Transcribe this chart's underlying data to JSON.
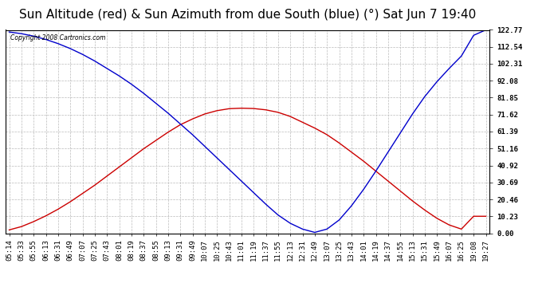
{
  "title": "Sun Altitude (red) & Sun Azimuth from due South (blue) (°) Sat Jun 7 19:40",
  "copyright": "Copyright 2008 Cartronics.com",
  "ymin": 0.0,
  "ymax": 122.77,
  "yticks": [
    0.0,
    10.23,
    20.46,
    30.69,
    40.92,
    51.16,
    61.39,
    71.62,
    81.85,
    92.08,
    102.31,
    112.54,
    122.77
  ],
  "x_labels": [
    "05:14",
    "05:33",
    "05:55",
    "06:13",
    "06:31",
    "06:49",
    "07:07",
    "07:25",
    "07:43",
    "08:01",
    "08:19",
    "08:37",
    "08:55",
    "09:13",
    "09:31",
    "09:49",
    "10:07",
    "10:25",
    "10:43",
    "11:01",
    "11:19",
    "11:37",
    "11:55",
    "12:13",
    "12:31",
    "12:49",
    "13:07",
    "13:25",
    "13:43",
    "14:01",
    "14:19",
    "14:37",
    "14:55",
    "15:13",
    "15:31",
    "15:49",
    "16:07",
    "16:25",
    "19:08",
    "19:27"
  ],
  "red_line": [
    2.0,
    4.0,
    7.0,
    10.5,
    14.5,
    19.0,
    24.0,
    29.0,
    34.5,
    40.0,
    45.5,
    51.0,
    56.0,
    61.0,
    65.5,
    69.0,
    72.0,
    74.0,
    75.2,
    75.5,
    75.3,
    74.5,
    73.0,
    70.5,
    67.0,
    63.5,
    59.5,
    54.5,
    49.0,
    43.5,
    37.5,
    31.5,
    25.5,
    19.5,
    14.0,
    9.0,
    5.0,
    2.5,
    10.23,
    10.23
  ],
  "blue_line": [
    121.5,
    120.5,
    119.0,
    117.0,
    114.5,
    111.5,
    108.0,
    104.0,
    99.5,
    95.0,
    90.0,
    84.5,
    78.5,
    72.5,
    66.0,
    59.5,
    52.5,
    45.5,
    38.5,
    31.5,
    24.5,
    17.5,
    11.0,
    6.0,
    2.5,
    0.5,
    2.5,
    8.0,
    16.5,
    26.5,
    37.5,
    49.0,
    60.5,
    72.0,
    82.5,
    91.5,
    99.5,
    107.0,
    119.5,
    122.77
  ],
  "background_color": "#ffffff",
  "grid_color": "#bbbbbb",
  "red_color": "#cc0000",
  "blue_color": "#0000cc",
  "title_fontsize": 11,
  "tick_fontsize": 6.5
}
